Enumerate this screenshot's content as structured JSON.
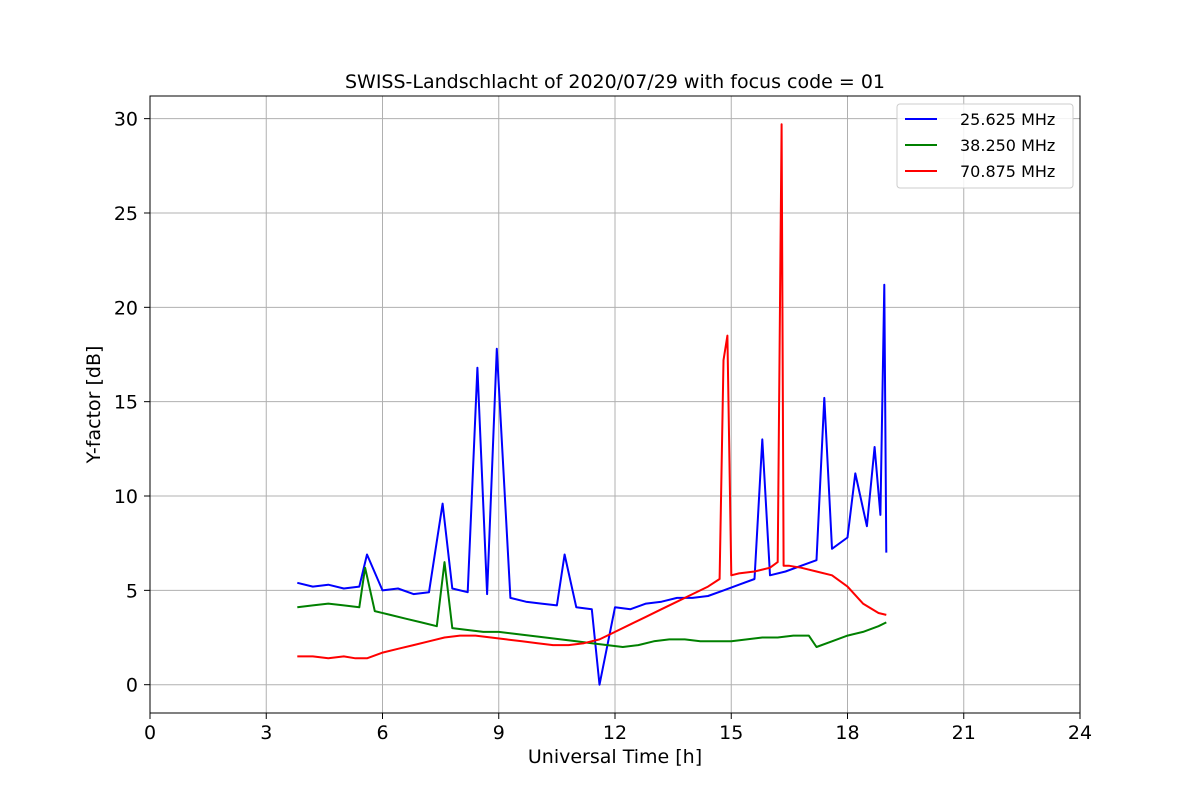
{
  "chart_data": {
    "type": "line",
    "title": "SWISS-Landschlacht of 2020/07/29 with focus code = 01",
    "xlabel": "Universal Time [h]",
    "ylabel": "Y-factor [dB]",
    "xlim": [
      0,
      24
    ],
    "ylim": [
      -1.5,
      31.2
    ],
    "xticks": [
      0,
      3,
      6,
      9,
      12,
      15,
      18,
      21,
      24
    ],
    "yticks": [
      0,
      5,
      10,
      15,
      20,
      25,
      30
    ],
    "grid": true,
    "legend_position": "top-right",
    "series": [
      {
        "name": "25.625 MHz",
        "color": "#0000ff",
        "x": [
          3.8,
          4.2,
          4.6,
          5.0,
          5.4,
          5.6,
          6.0,
          6.4,
          6.8,
          7.2,
          7.55,
          7.8,
          8.2,
          8.45,
          8.7,
          8.95,
          9.3,
          9.7,
          10.1,
          10.5,
          10.7,
          11.0,
          11.4,
          11.6,
          12.0,
          12.4,
          12.8,
          13.2,
          13.6,
          14.0,
          14.4,
          14.8,
          15.2,
          15.6,
          15.8,
          16.0,
          16.4,
          16.8,
          17.2,
          17.4,
          17.6,
          18.0,
          18.2,
          18.5,
          18.7,
          18.85,
          18.95,
          19.0
        ],
        "y": [
          5.4,
          5.2,
          5.3,
          5.1,
          5.2,
          6.9,
          5.0,
          5.1,
          4.8,
          4.9,
          9.6,
          5.1,
          4.9,
          16.8,
          4.8,
          17.8,
          4.6,
          4.4,
          4.3,
          4.2,
          6.9,
          4.1,
          4.0,
          0.0,
          4.1,
          4.0,
          4.3,
          4.4,
          4.6,
          4.6,
          4.7,
          5.0,
          5.3,
          5.6,
          13.0,
          5.8,
          6.0,
          6.3,
          6.6,
          15.2,
          7.2,
          7.8,
          11.2,
          8.4,
          12.6,
          9.0,
          21.2,
          7.0
        ]
      },
      {
        "name": "38.250 MHz",
        "color": "#008000",
        "x": [
          3.8,
          4.2,
          4.6,
          5.0,
          5.4,
          5.55,
          5.8,
          6.2,
          6.6,
          7.0,
          7.4,
          7.6,
          7.8,
          8.2,
          8.6,
          9.0,
          9.4,
          9.8,
          10.2,
          10.6,
          11.0,
          11.4,
          11.8,
          12.2,
          12.6,
          13.0,
          13.4,
          13.8,
          14.2,
          14.6,
          15.0,
          15.4,
          15.8,
          16.2,
          16.6,
          17.0,
          17.2,
          17.6,
          18.0,
          18.4,
          18.8,
          19.0
        ],
        "y": [
          4.1,
          4.2,
          4.3,
          4.2,
          4.1,
          6.2,
          3.9,
          3.7,
          3.5,
          3.3,
          3.1,
          6.5,
          3.0,
          2.9,
          2.8,
          2.8,
          2.7,
          2.6,
          2.5,
          2.4,
          2.3,
          2.2,
          2.1,
          2.0,
          2.1,
          2.3,
          2.4,
          2.4,
          2.3,
          2.3,
          2.3,
          2.4,
          2.5,
          2.5,
          2.6,
          2.6,
          2.0,
          2.3,
          2.6,
          2.8,
          3.1,
          3.3
        ]
      },
      {
        "name": "70.875 MHz",
        "color": "#ff0000",
        "x": [
          3.8,
          4.2,
          4.6,
          5.0,
          5.3,
          5.6,
          6.0,
          6.4,
          6.8,
          7.2,
          7.6,
          8.0,
          8.4,
          8.8,
          9.2,
          9.6,
          10.0,
          10.4,
          10.8,
          11.2,
          11.6,
          12.0,
          12.4,
          12.8,
          13.2,
          13.6,
          14.0,
          14.4,
          14.7,
          14.8,
          14.9,
          15.0,
          15.2,
          15.6,
          16.0,
          16.2,
          16.3,
          16.35,
          16.5,
          16.8,
          17.2,
          17.6,
          18.0,
          18.4,
          18.8,
          19.0
        ],
        "y": [
          1.5,
          1.5,
          1.4,
          1.5,
          1.4,
          1.4,
          1.7,
          1.9,
          2.1,
          2.3,
          2.5,
          2.6,
          2.6,
          2.5,
          2.4,
          2.3,
          2.2,
          2.1,
          2.1,
          2.2,
          2.4,
          2.8,
          3.2,
          3.6,
          4.0,
          4.4,
          4.8,
          5.2,
          5.6,
          17.2,
          18.5,
          5.8,
          5.9,
          6.0,
          6.2,
          6.5,
          29.7,
          6.3,
          6.3,
          6.2,
          6.0,
          5.8,
          5.2,
          4.3,
          3.8,
          3.7
        ]
      }
    ]
  }
}
